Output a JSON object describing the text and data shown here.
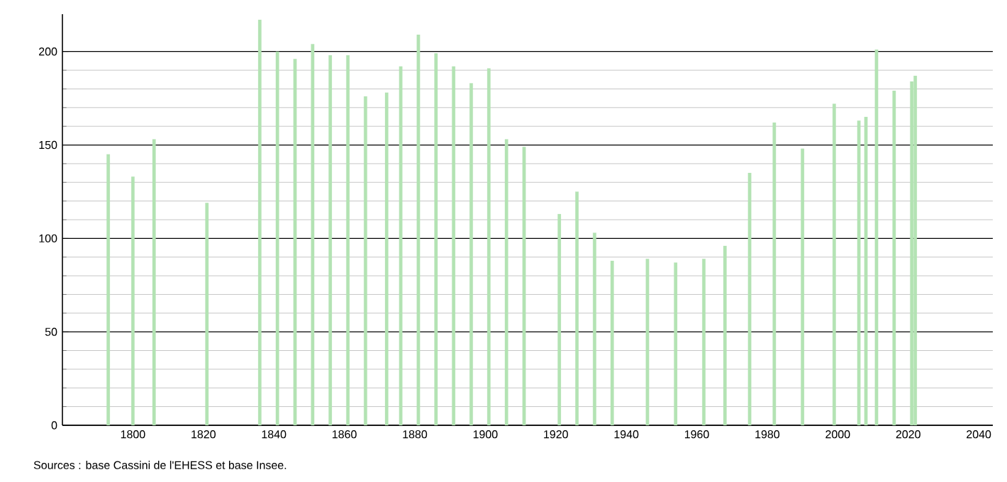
{
  "chart_data": {
    "type": "bar",
    "color": "#b3e3b3",
    "x": [
      1793,
      1800,
      1806,
      1821,
      1836,
      1841,
      1846,
      1851,
      1856,
      1861,
      1866,
      1872,
      1876,
      1881,
      1886,
      1891,
      1896,
      1901,
      1906,
      1911,
      1921,
      1926,
      1931,
      1936,
      1946,
      1954,
      1962,
      1968,
      1975,
      1982,
      1990,
      1999,
      2006,
      2008,
      2011,
      2016,
      2021,
      2022
    ],
    "values": [
      145,
      133,
      153,
      119,
      217,
      200,
      196,
      204,
      198,
      198,
      176,
      178,
      192,
      209,
      199,
      192,
      183,
      191,
      153,
      149,
      113,
      125,
      103,
      88,
      89,
      87,
      89,
      96,
      135,
      162,
      148,
      172,
      163,
      165,
      201,
      179,
      184,
      187
    ],
    "xlim": [
      1780,
      2044
    ],
    "xticks": [
      1800,
      1820,
      1840,
      1860,
      1880,
      1900,
      1920,
      1940,
      1960,
      1980,
      2000,
      2020,
      2040
    ],
    "ylim": [
      0,
      220
    ],
    "yticks": [
      0,
      50,
      100,
      150,
      200
    ],
    "grid": "y",
    "annotations": [
      "Sources : base Cassini de l'EHESS et base Insee."
    ]
  }
}
